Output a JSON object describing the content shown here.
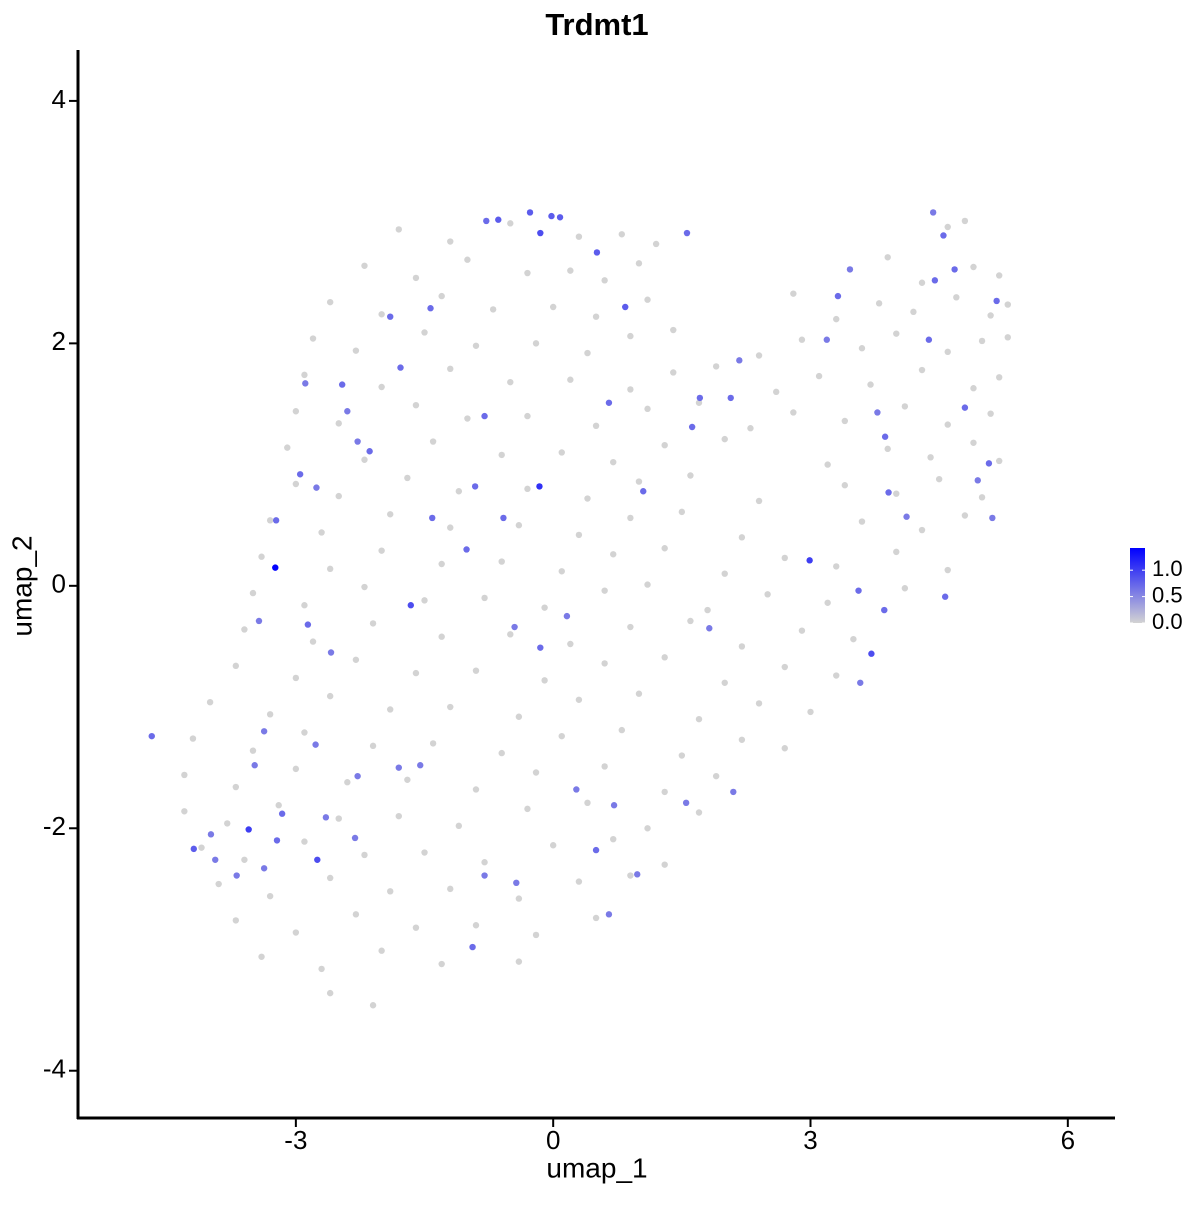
{
  "chart_data": {
    "type": "scatter",
    "title": "Trdmt1",
    "x_label": "umap_1",
    "y_label": "umap_2",
    "xlim": [
      -5.54,
      6.55
    ],
    "ylim": [
      -4.39,
      4.42
    ],
    "xticks": [
      -3,
      0,
      3,
      6
    ],
    "yticks": [
      -4,
      -2,
      0,
      2,
      4
    ],
    "colorbar": {
      "lim": [
        0,
        1.42
      ],
      "ticks": [
        {
          "value": 0,
          "label": "0.0"
        },
        {
          "value": 0.5,
          "label": "0.5"
        },
        {
          "value": 1,
          "label": "1.0"
        }
      ],
      "low_color": "#d3d3d3",
      "high_color": "#0000ff"
    },
    "series": [
      {
        "x": [
          -1.8,
          -1.2,
          -0.5,
          0.3,
          0.8,
          1.2,
          4.6,
          4.8,
          -2.2,
          -1.6,
          -1.0,
          -0.3,
          0.2,
          0.6,
          1.0,
          3.9,
          4.3,
          4.9,
          5.2,
          -2.6,
          -2.0,
          -1.3,
          -0.7,
          0.0,
          0.5,
          1.1,
          2.8,
          3.3,
          3.8,
          4.2,
          4.7,
          5.1,
          5.3,
          -2.8,
          -2.3,
          -1.5,
          -0.9,
          -0.2,
          0.4,
          0.9,
          1.4,
          2.4,
          2.9,
          3.6,
          4.0,
          4.6,
          5.0,
          5.3,
          -2.9,
          -2.0,
          -1.2,
          -0.5,
          0.2,
          0.9,
          1.4,
          1.9,
          2.6,
          3.1,
          3.7,
          4.3,
          4.9,
          5.2,
          -3.0,
          -2.5,
          -1.6,
          -1.0,
          -0.3,
          0.5,
          1.1,
          1.7,
          2.3,
          2.8,
          3.4,
          4.1,
          4.6,
          5.1,
          -3.1,
          -2.2,
          -1.4,
          -0.6,
          0.1,
          0.7,
          1.3,
          2.0,
          3.2,
          3.9,
          4.4,
          4.9,
          5.2,
          -3.0,
          -2.5,
          -1.7,
          -1.1,
          -0.3,
          0.4,
          1.0,
          1.6,
          2.4,
          3.4,
          4.0,
          4.5,
          5.0,
          -3.3,
          -2.7,
          -1.9,
          -1.2,
          -0.4,
          0.3,
          0.9,
          1.5,
          2.2,
          3.6,
          4.3,
          4.8,
          -3.4,
          -2.6,
          -2.0,
          -1.3,
          -0.6,
          0.1,
          0.7,
          1.3,
          2.0,
          2.7,
          3.3,
          4.0,
          4.6,
          -3.5,
          -2.9,
          -2.2,
          -1.5,
          -0.8,
          -0.1,
          0.6,
          1.1,
          1.8,
          2.5,
          3.2,
          4.1,
          -3.6,
          -2.8,
          -2.1,
          -1.3,
          -0.5,
          0.2,
          0.9,
          1.6,
          2.2,
          2.9,
          3.5,
          -3.7,
          -3.0,
          -2.3,
          -1.6,
          -0.9,
          -0.1,
          0.6,
          1.3,
          2.0,
          2.7,
          3.3,
          -4.0,
          -3.3,
          -2.6,
          -1.9,
          -1.2,
          -0.4,
          0.3,
          1.0,
          1.7,
          2.4,
          3.0,
          -4.2,
          -3.5,
          -2.9,
          -2.1,
          -1.4,
          -0.6,
          0.1,
          0.8,
          1.5,
          2.2,
          2.7,
          -4.3,
          -3.7,
          -3.0,
          -2.4,
          -1.7,
          -0.9,
          -0.2,
          0.6,
          1.3,
          1.9,
          -4.3,
          -3.8,
          -3.2,
          -2.5,
          -1.8,
          -1.1,
          -0.3,
          0.4,
          1.1,
          1.7,
          -4.1,
          -3.6,
          -2.9,
          -2.2,
          -1.5,
          -0.8,
          0.0,
          0.7,
          1.3,
          -3.9,
          -3.3,
          -2.6,
          -1.9,
          -1.2,
          -0.4,
          0.3,
          0.9,
          -3.7,
          -3.0,
          -2.3,
          -1.6,
          -0.9,
          -0.2,
          0.5,
          -3.4,
          -2.7,
          -2.0,
          -1.3,
          -0.4,
          -2.6,
          -2.1
        ],
        "y": [
          2.94,
          2.84,
          2.99,
          2.88,
          2.9,
          2.82,
          2.96,
          3.01,
          2.64,
          2.54,
          2.69,
          2.58,
          2.6,
          2.52,
          2.66,
          2.71,
          2.5,
          2.63,
          2.56,
          2.34,
          2.24,
          2.39,
          2.28,
          2.3,
          2.22,
          2.36,
          2.41,
          2.2,
          2.33,
          2.26,
          2.38,
          2.23,
          2.32,
          2.04,
          1.94,
          2.09,
          1.98,
          2.0,
          1.92,
          2.06,
          2.11,
          1.9,
          2.03,
          1.96,
          2.08,
          1.93,
          2.02,
          2.05,
          1.74,
          1.64,
          1.79,
          1.68,
          1.7,
          1.62,
          1.76,
          1.81,
          1.6,
          1.73,
          1.66,
          1.78,
          1.63,
          1.72,
          1.44,
          1.34,
          1.49,
          1.38,
          1.4,
          1.32,
          1.46,
          1.51,
          1.3,
          1.43,
          1.36,
          1.48,
          1.33,
          1.42,
          1.14,
          1.04,
          1.19,
          1.08,
          1.1,
          1.02,
          1.16,
          1.21,
          1.0,
          1.13,
          1.06,
          1.18,
          1.03,
          0.84,
          0.74,
          0.89,
          0.78,
          0.8,
          0.72,
          0.86,
          0.91,
          0.7,
          0.83,
          0.76,
          0.88,
          0.73,
          0.54,
          0.44,
          0.59,
          0.48,
          0.5,
          0.42,
          0.56,
          0.61,
          0.4,
          0.53,
          0.46,
          0.58,
          0.24,
          0.14,
          0.29,
          0.18,
          0.2,
          0.12,
          0.26,
          0.31,
          0.1,
          0.23,
          0.16,
          0.28,
          0.13,
          -0.06,
          -0.16,
          -0.01,
          -0.12,
          -0.1,
          -0.18,
          -0.04,
          0.01,
          -0.2,
          -0.07,
          -0.14,
          -0.02,
          -0.36,
          -0.46,
          -0.31,
          -0.42,
          -0.4,
          -0.48,
          -0.34,
          -0.29,
          -0.5,
          -0.37,
          -0.44,
          -0.66,
          -0.76,
          -0.61,
          -0.72,
          -0.7,
          -0.78,
          -0.64,
          -0.59,
          -0.8,
          -0.67,
          -0.74,
          -0.96,
          -1.06,
          -0.91,
          -1.02,
          -1.0,
          -1.08,
          -0.94,
          -0.89,
          -1.1,
          -0.97,
          -1.04,
          -1.26,
          -1.36,
          -1.21,
          -1.32,
          -1.3,
          -1.38,
          -1.24,
          -1.19,
          -1.4,
          -1.27,
          -1.34,
          -1.56,
          -1.66,
          -1.51,
          -1.62,
          -1.6,
          -1.68,
          -1.54,
          -1.49,
          -1.7,
          -1.57,
          -1.86,
          -1.96,
          -1.81,
          -1.92,
          -1.9,
          -1.98,
          -1.84,
          -1.79,
          -2.0,
          -1.87,
          -2.16,
          -2.26,
          -2.11,
          -2.22,
          -2.2,
          -2.28,
          -2.14,
          -2.09,
          -2.3,
          -2.46,
          -2.56,
          -2.41,
          -2.52,
          -2.5,
          -2.58,
          -2.44,
          -2.39,
          -2.76,
          -2.86,
          -2.71,
          -2.82,
          -2.8,
          -2.88,
          -2.74,
          -3.06,
          -3.16,
          -3.01,
          -3.12,
          -3.1,
          -3.36,
          -3.46
        ]
      },
      {
        "x": [
          -3.24,
          -0.16,
          -0.27,
          -0.64,
          -0.78,
          -0.15,
          -0.02,
          0.08,
          0.51,
          0.84,
          1.56,
          -3.55,
          -2.75,
          -1.66,
          2.99,
          3.71,
          -4.19,
          -4.68,
          -0.94,
          -2.95,
          -3.23,
          -1.43,
          -1.78,
          -1.9,
          -0.8,
          -0.91,
          -1.41,
          -1.01,
          -0.58,
          -0.45,
          -0.15,
          -0.43,
          -0.8,
          0.65,
          1.05,
          1.62,
          1.71,
          2.07,
          2.17,
          3.32,
          3.46,
          4.38,
          4.45,
          4.68,
          4.43,
          4.55,
          5.17,
          4.8,
          5.08,
          3.87,
          3.91,
          4.12,
          4.57,
          3.86,
          3.56,
          3.58,
          2.1,
          1.55,
          0.71,
          0.5,
          0.65,
          0.98,
          0.27,
          -2.77,
          -3.37,
          -3.22,
          -2.65,
          -2.31,
          -2.28,
          -3.37,
          -3.94,
          -3.69,
          -3.16,
          -2.86,
          -2.59,
          -2.14,
          -2.4,
          -2.28,
          -2.89,
          -2.46,
          -2.76,
          -3.43,
          -3.99,
          -3.48,
          -1.8,
          -1.55,
          0.16,
          1.82,
          3.19,
          3.78,
          5.12,
          4.95
        ],
        "y": [
          0.15,
          0.82,
          3.08,
          3.02,
          3.01,
          2.91,
          3.05,
          3.04,
          2.75,
          2.3,
          2.91,
          -2.01,
          -2.26,
          -0.16,
          0.21,
          -0.56,
          -2.17,
          -1.24,
          -2.98,
          0.92,
          0.54,
          2.29,
          1.8,
          2.22,
          1.4,
          0.82,
          0.56,
          0.3,
          0.56,
          -0.34,
          -0.51,
          -2.45,
          -2.39,
          1.51,
          0.78,
          1.31,
          1.55,
          1.55,
          1.86,
          2.39,
          2.61,
          2.03,
          2.52,
          2.61,
          3.08,
          2.89,
          2.35,
          1.47,
          1.01,
          1.23,
          0.77,
          0.57,
          -0.09,
          -0.2,
          -0.04,
          -0.8,
          -1.7,
          -1.79,
          -1.81,
          -2.18,
          -2.71,
          -2.38,
          -1.68,
          -1.31,
          -2.33,
          -2.1,
          -1.91,
          -2.08,
          -1.57,
          -1.2,
          -2.26,
          -2.39,
          -1.88,
          -0.32,
          -0.55,
          1.11,
          1.44,
          1.19,
          1.67,
          1.66,
          0.81,
          -0.29,
          -2.05,
          -1.48,
          -1.5,
          -1.48,
          -0.25,
          -0.35,
          2.03,
          1.43,
          0.56,
          0.87
        ],
        "values": [
          1.4,
          1.1,
          0.8,
          0.8,
          0.7,
          0.9,
          0.8,
          0.8,
          0.8,
          0.8,
          0.7,
          1.0,
          0.9,
          0.9,
          1.0,
          0.9,
          0.8,
          0.7,
          0.7,
          0.7,
          0.7,
          0.7,
          0.7,
          0.7,
          0.7,
          0.7,
          0.7,
          0.7,
          0.7,
          0.6,
          0.7,
          0.6,
          0.6,
          0.7,
          0.7,
          0.7,
          0.7,
          0.7,
          0.6,
          0.7,
          0.6,
          0.7,
          0.7,
          0.7,
          0.6,
          0.7,
          0.7,
          0.7,
          0.7,
          0.7,
          0.7,
          0.6,
          0.7,
          0.7,
          0.7,
          0.6,
          0.6,
          0.6,
          0.6,
          0.7,
          0.6,
          0.6,
          0.6,
          0.6,
          0.6,
          0.7,
          0.6,
          0.6,
          0.6,
          0.6,
          0.6,
          0.6,
          0.7,
          0.7,
          0.6,
          0.7,
          0.6,
          0.6,
          0.6,
          0.7,
          0.6,
          0.6,
          0.6,
          0.6,
          0.6,
          0.6,
          0.6,
          0.6,
          0.6,
          0.6,
          0.6,
          0.6
        ]
      }
    ]
  }
}
